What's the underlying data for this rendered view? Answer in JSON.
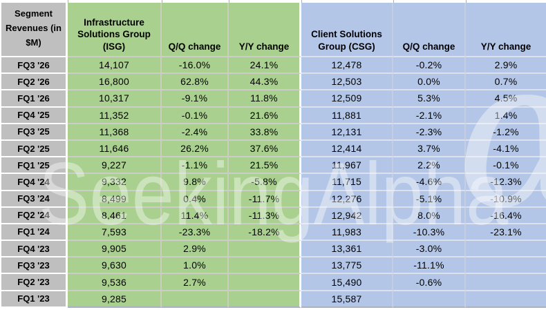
{
  "table": {
    "corner_header": "Segment Revenues (in $M)",
    "col_headers": [
      "Infrastructure Solutions Group (ISG)",
      "Q/Q change",
      "Y/Y change",
      "Client Solutions Group (CSG)",
      "Q/Q change",
      "Y/Y change"
    ],
    "rows": [
      {
        "quarter": "FQ3 '26",
        "isg": "14,107",
        "isg_qq": "-16.0%",
        "isg_yy": "24.1%",
        "csg": "12,478",
        "csg_qq": "-0.2%",
        "csg_yy": "2.9%"
      },
      {
        "quarter": "FQ2 '26",
        "isg": "16,800",
        "isg_qq": "62.8%",
        "isg_yy": "44.3%",
        "csg": "12,503",
        "csg_qq": "0.0%",
        "csg_yy": "0.7%"
      },
      {
        "quarter": "FQ1 '26",
        "isg": "10,317",
        "isg_qq": "-9.1%",
        "isg_yy": "11.8%",
        "csg": "12,509",
        "csg_qq": "5.3%",
        "csg_yy": "4.5%"
      },
      {
        "quarter": "FQ4 '25",
        "isg": "11,352",
        "isg_qq": "-0.1%",
        "isg_yy": "21.6%",
        "csg": "11,881",
        "csg_qq": "-2.1%",
        "csg_yy": "1.4%"
      },
      {
        "quarter": "FQ3 '25",
        "isg": "11,368",
        "isg_qq": "-2.4%",
        "isg_yy": "33.8%",
        "csg": "12,131",
        "csg_qq": "-2.3%",
        "csg_yy": "-1.2%"
      },
      {
        "quarter": "FQ2 '25",
        "isg": "11,646",
        "isg_qq": "26.2%",
        "isg_yy": "37.6%",
        "csg": "12,414",
        "csg_qq": "3.7%",
        "csg_yy": "-4.1%"
      },
      {
        "quarter": "FQ1 '25",
        "isg": "9,227",
        "isg_qq": "-1.1%",
        "isg_yy": "21.5%",
        "csg": "11,967",
        "csg_qq": "2.2%",
        "csg_yy": "-0.1%"
      },
      {
        "quarter": "FQ4 '24",
        "isg": "9,332",
        "isg_qq": "9.8%",
        "isg_yy": "-5.8%",
        "csg": "11,715",
        "csg_qq": "-4.6%",
        "csg_yy": "-12.3%"
      },
      {
        "quarter": "FQ3 '24",
        "isg": "8,499",
        "isg_qq": "0.4%",
        "isg_yy": "-11.7%",
        "csg": "12,276",
        "csg_qq": "-5.1%",
        "csg_yy": "-10.9%"
      },
      {
        "quarter": "FQ2 '24",
        "isg": "8,461",
        "isg_qq": "11.4%",
        "isg_yy": "-11.3%",
        "csg": "12,942",
        "csg_qq": "8.0%",
        "csg_yy": "-16.4%"
      },
      {
        "quarter": "FQ1 '24",
        "isg": "7,593",
        "isg_qq": "-23.3%",
        "isg_yy": "-18.2%",
        "csg": "11,983",
        "csg_qq": "-10.3%",
        "csg_yy": "-23.1%"
      },
      {
        "quarter": "FQ4 '23",
        "isg": "9,905",
        "isg_qq": "2.9%",
        "isg_yy": "",
        "csg": "13,361",
        "csg_qq": "-3.0%",
        "csg_yy": ""
      },
      {
        "quarter": "FQ3 '23",
        "isg": "9,630",
        "isg_qq": "1.0%",
        "isg_yy": "",
        "csg": "13,775",
        "csg_qq": "-11.1%",
        "csg_yy": ""
      },
      {
        "quarter": "FQ2 '23",
        "isg": "9,536",
        "isg_qq": "2.7%",
        "isg_yy": "",
        "csg": "15,490",
        "csg_qq": "-0.6%",
        "csg_yy": ""
      },
      {
        "quarter": "FQ1 '23",
        "isg": "9,285",
        "isg_qq": "",
        "isg_yy": "",
        "csg": "15,587",
        "csg_qq": "",
        "csg_yy": ""
      }
    ]
  },
  "watermark": {
    "text": "SeekingAlpha",
    "alpha_symbol": "α"
  },
  "colors": {
    "label_gray": "#BFBFBF",
    "isg_green": "#A9D08E",
    "csg_blue": "#B4C6E7",
    "text": "#000000",
    "watermark": "rgba(255,255,255,0.40)"
  },
  "chart_data": {
    "type": "table",
    "title": "Segment Revenues (in $M)",
    "categories": [
      "FQ3 '26",
      "FQ2 '26",
      "FQ1 '26",
      "FQ4 '25",
      "FQ3 '25",
      "FQ2 '25",
      "FQ1 '25",
      "FQ4 '24",
      "FQ3 '24",
      "FQ2 '24",
      "FQ1 '24",
      "FQ4 '23",
      "FQ3 '23",
      "FQ2 '23",
      "FQ1 '23"
    ],
    "series": [
      {
        "name": "Infrastructure Solutions Group (ISG) revenue $M",
        "values": [
          14107,
          16800,
          10317,
          11352,
          11368,
          11646,
          9227,
          9332,
          8499,
          8461,
          7593,
          9905,
          9630,
          9536,
          9285
        ]
      },
      {
        "name": "ISG Q/Q change %",
        "values": [
          -16.0,
          62.8,
          -9.1,
          -0.1,
          -2.4,
          26.2,
          -1.1,
          9.8,
          0.4,
          11.4,
          -23.3,
          2.9,
          1.0,
          2.7,
          null
        ]
      },
      {
        "name": "ISG Y/Y change %",
        "values": [
          24.1,
          44.3,
          11.8,
          21.6,
          33.8,
          37.6,
          21.5,
          -5.8,
          -11.7,
          -11.3,
          -18.2,
          null,
          null,
          null,
          null
        ]
      },
      {
        "name": "Client Solutions Group (CSG) revenue $M",
        "values": [
          12478,
          12503,
          12509,
          11881,
          12131,
          12414,
          11967,
          11715,
          12276,
          12942,
          11983,
          13361,
          13775,
          15490,
          15587
        ]
      },
      {
        "name": "CSG Q/Q change %",
        "values": [
          -0.2,
          0.0,
          5.3,
          -2.1,
          -2.3,
          3.7,
          2.2,
          -4.6,
          -5.1,
          8.0,
          -10.3,
          -3.0,
          -11.1,
          -0.6,
          null
        ]
      },
      {
        "name": "CSG Y/Y change %",
        "values": [
          2.9,
          0.7,
          4.5,
          1.4,
          -1.2,
          -4.1,
          -0.1,
          -12.3,
          -10.9,
          -16.4,
          -23.1,
          null,
          null,
          null,
          null
        ]
      }
    ]
  }
}
